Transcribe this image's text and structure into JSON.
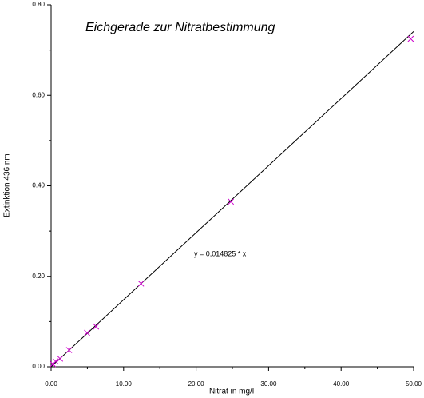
{
  "chart_data": {
    "type": "scatter",
    "title": "Eichgerade zur Nitratbestimmung",
    "xlabel": "Nitrat in mg/l",
    "ylabel": "Extinktion 436 nm",
    "annotation": "y = 0,014825 * x",
    "x": [
      0.25,
      0.62,
      1.24,
      2.48,
      4.96,
      6.2,
      12.4,
      24.8,
      49.6
    ],
    "values": [
      0.006,
      0.012,
      0.018,
      0.037,
      0.075,
      0.089,
      0.184,
      0.365,
      0.725
    ],
    "color": "#cc00cc",
    "fit_line": {
      "x": [
        0,
        50
      ],
      "y": [
        0,
        0.741
      ],
      "color": "#000000"
    },
    "xlim": [
      0,
      50
    ],
    "ylim": [
      0,
      0.8
    ],
    "xticks": [
      {
        "value": 0,
        "label": "0.00"
      },
      {
        "value": 10,
        "label": "10.00"
      },
      {
        "value": 20,
        "label": "20.00"
      },
      {
        "value": 30,
        "label": "30.00"
      },
      {
        "value": 40,
        "label": "40.00"
      },
      {
        "value": 50,
        "label": "50.00"
      }
    ],
    "xminorticks": [
      5,
      15,
      25,
      35,
      45
    ],
    "yticks": [
      {
        "value": 0,
        "label": "0.00"
      },
      {
        "value": 0.2,
        "label": "0.20"
      },
      {
        "value": 0.4,
        "label": "0.40"
      },
      {
        "value": 0.6,
        "label": "0.60"
      },
      {
        "value": 0.8,
        "label": "0.80"
      }
    ],
    "yminorticks": [
      0.1,
      0.3,
      0.5,
      0.7
    ],
    "grid": false
  }
}
